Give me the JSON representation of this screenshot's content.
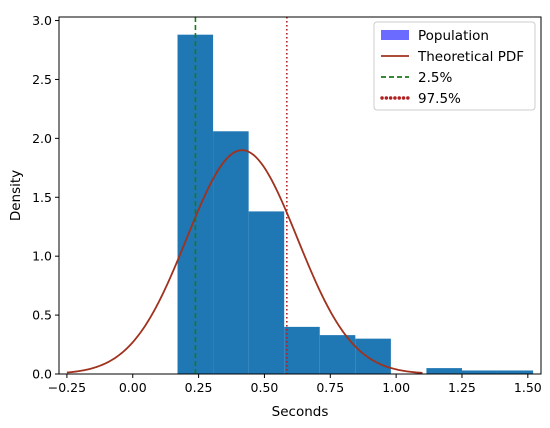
{
  "chart_data": {
    "type": "bar",
    "title": "",
    "xlabel": "Seconds",
    "ylabel": "Density",
    "xlim": [
      -0.28,
      1.55
    ],
    "ylim": [
      0,
      3.03
    ],
    "x_ticks": [
      -0.25,
      0.0,
      0.25,
      0.5,
      0.75,
      1.0,
      1.25,
      1.5
    ],
    "x_tick_labels": [
      "−0.25",
      "0.00",
      "0.25",
      "0.50",
      "0.75",
      "1.00",
      "1.25",
      "1.50"
    ],
    "y_ticks": [
      0.0,
      0.5,
      1.0,
      1.5,
      2.0,
      2.5,
      3.0
    ],
    "y_tick_labels": [
      "0.0",
      "0.5",
      "1.0",
      "1.5",
      "2.0",
      "2.5",
      "3.0"
    ],
    "grid": false,
    "legend_position": "top-right",
    "histogram": {
      "name": "Population",
      "color": "#1f77b4",
      "legend_color": "#6b6bff",
      "bins": [
        {
          "x0": 0.17,
          "x1": 0.305,
          "density": 2.88
        },
        {
          "x0": 0.305,
          "x1": 0.44,
          "density": 2.06
        },
        {
          "x0": 0.44,
          "x1": 0.575,
          "density": 1.38
        },
        {
          "x0": 0.575,
          "x1": 0.71,
          "density": 0.4
        },
        {
          "x0": 0.71,
          "x1": 0.845,
          "density": 0.33
        },
        {
          "x0": 0.845,
          "x1": 0.98,
          "density": 0.3
        },
        {
          "x0": 0.98,
          "x1": 1.115,
          "density": 0.0
        },
        {
          "x0": 1.115,
          "x1": 1.25,
          "density": 0.05
        },
        {
          "x0": 1.25,
          "x1": 1.385,
          "density": 0.03
        },
        {
          "x0": 1.385,
          "x1": 1.52,
          "density": 0.03
        }
      ]
    },
    "pdf_curve": {
      "name": "Theoretical PDF",
      "color": "#a0321e",
      "mean": 0.415,
      "std": 0.21,
      "x_start": -0.25,
      "x_end": 1.1
    },
    "vlines": [
      {
        "name": "2.5%",
        "x": 0.238,
        "color": "#1a7a1a",
        "style": "dashed"
      },
      {
        "name": "97.5%",
        "x": 0.585,
        "color": "#b02020",
        "style": "dotted"
      }
    ]
  }
}
